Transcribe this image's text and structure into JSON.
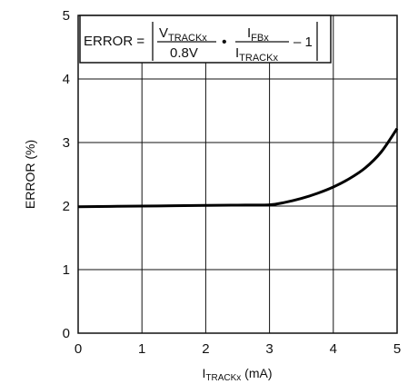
{
  "chart_data": {
    "type": "line",
    "title": "",
    "xlabel": "TRACKx (mA)",
    "xlabel_prefix": "I",
    "xlabel_sub": "TRACKx",
    "xlabel_unit": " (mA)",
    "ylabel": "ERROR (%)",
    "xlim": [
      0,
      5
    ],
    "ylim": [
      0,
      5
    ],
    "x_ticks": [
      "0",
      "1",
      "2",
      "3",
      "4",
      "5"
    ],
    "y_ticks": [
      "0",
      "1",
      "2",
      "3",
      "4",
      "5"
    ],
    "grid": true,
    "series": [
      {
        "x": [
          0,
          0.5,
          1,
          1.5,
          2,
          2.5,
          3,
          3.25,
          3.5,
          3.75,
          4,
          4.25,
          4.5,
          4.75,
          5
        ],
        "y": [
          1.99,
          1.995,
          2.0,
          2.005,
          2.01,
          2.015,
          2.02,
          2.06,
          2.12,
          2.2,
          2.3,
          2.43,
          2.6,
          2.85,
          3.22
        ]
      }
    ],
    "annotation": {
      "lhs": "ERROR =",
      "v_sym": "V",
      "v_sub": "TRACKx",
      "v_den": "0.8V",
      "dot": "•",
      "i_sym": "I",
      "i_fb_sub": "FBx",
      "i_track_sub": "TRACKx",
      "minus_one": "– 1"
    }
  }
}
